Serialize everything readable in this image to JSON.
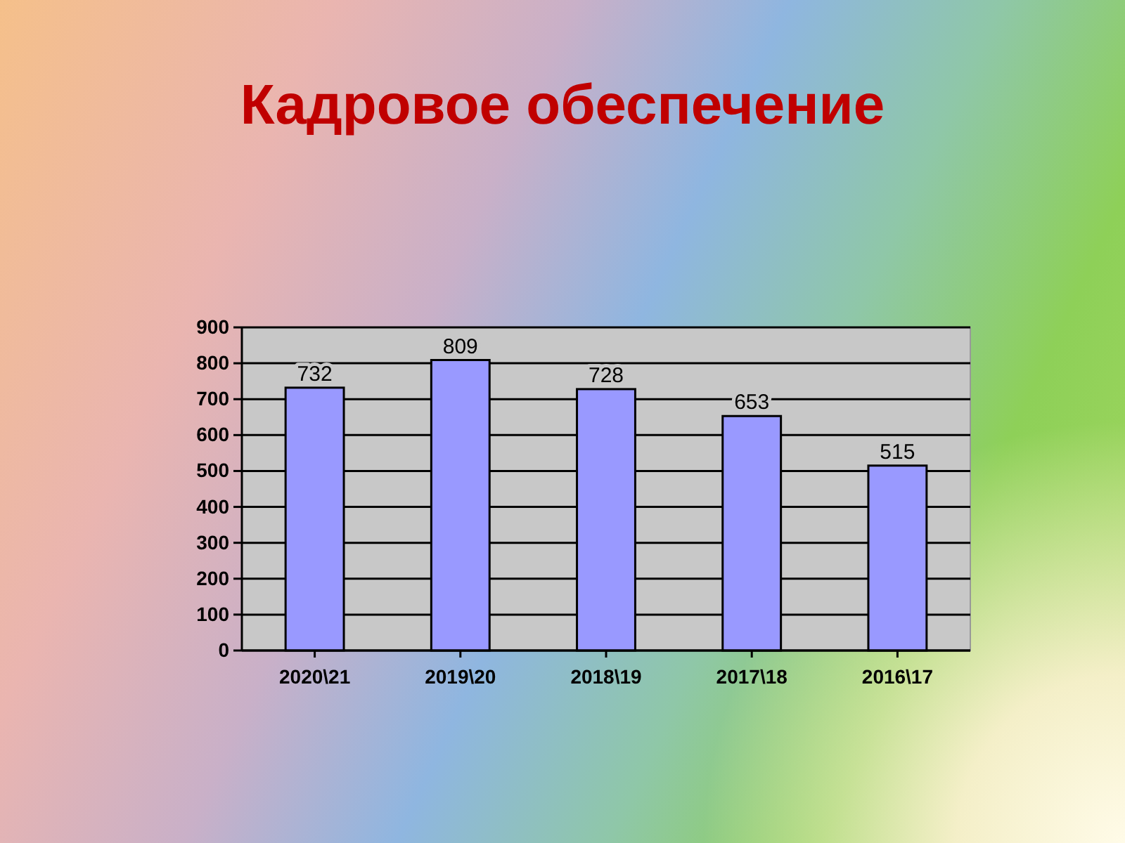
{
  "chart_data": {
    "type": "bar",
    "title": "Кадровое обеспечение",
    "categories": [
      "2020\\21",
      "2019\\20",
      "2018\\19",
      "2017\\18",
      "2016\\17"
    ],
    "values": [
      732,
      809,
      728,
      653,
      515
    ],
    "color": "#9999ff",
    "ylim": [
      0,
      900
    ],
    "yticks": [
      0,
      100,
      200,
      300,
      400,
      500,
      600,
      700,
      800,
      900
    ],
    "grid": "y",
    "data_labels": true
  }
}
